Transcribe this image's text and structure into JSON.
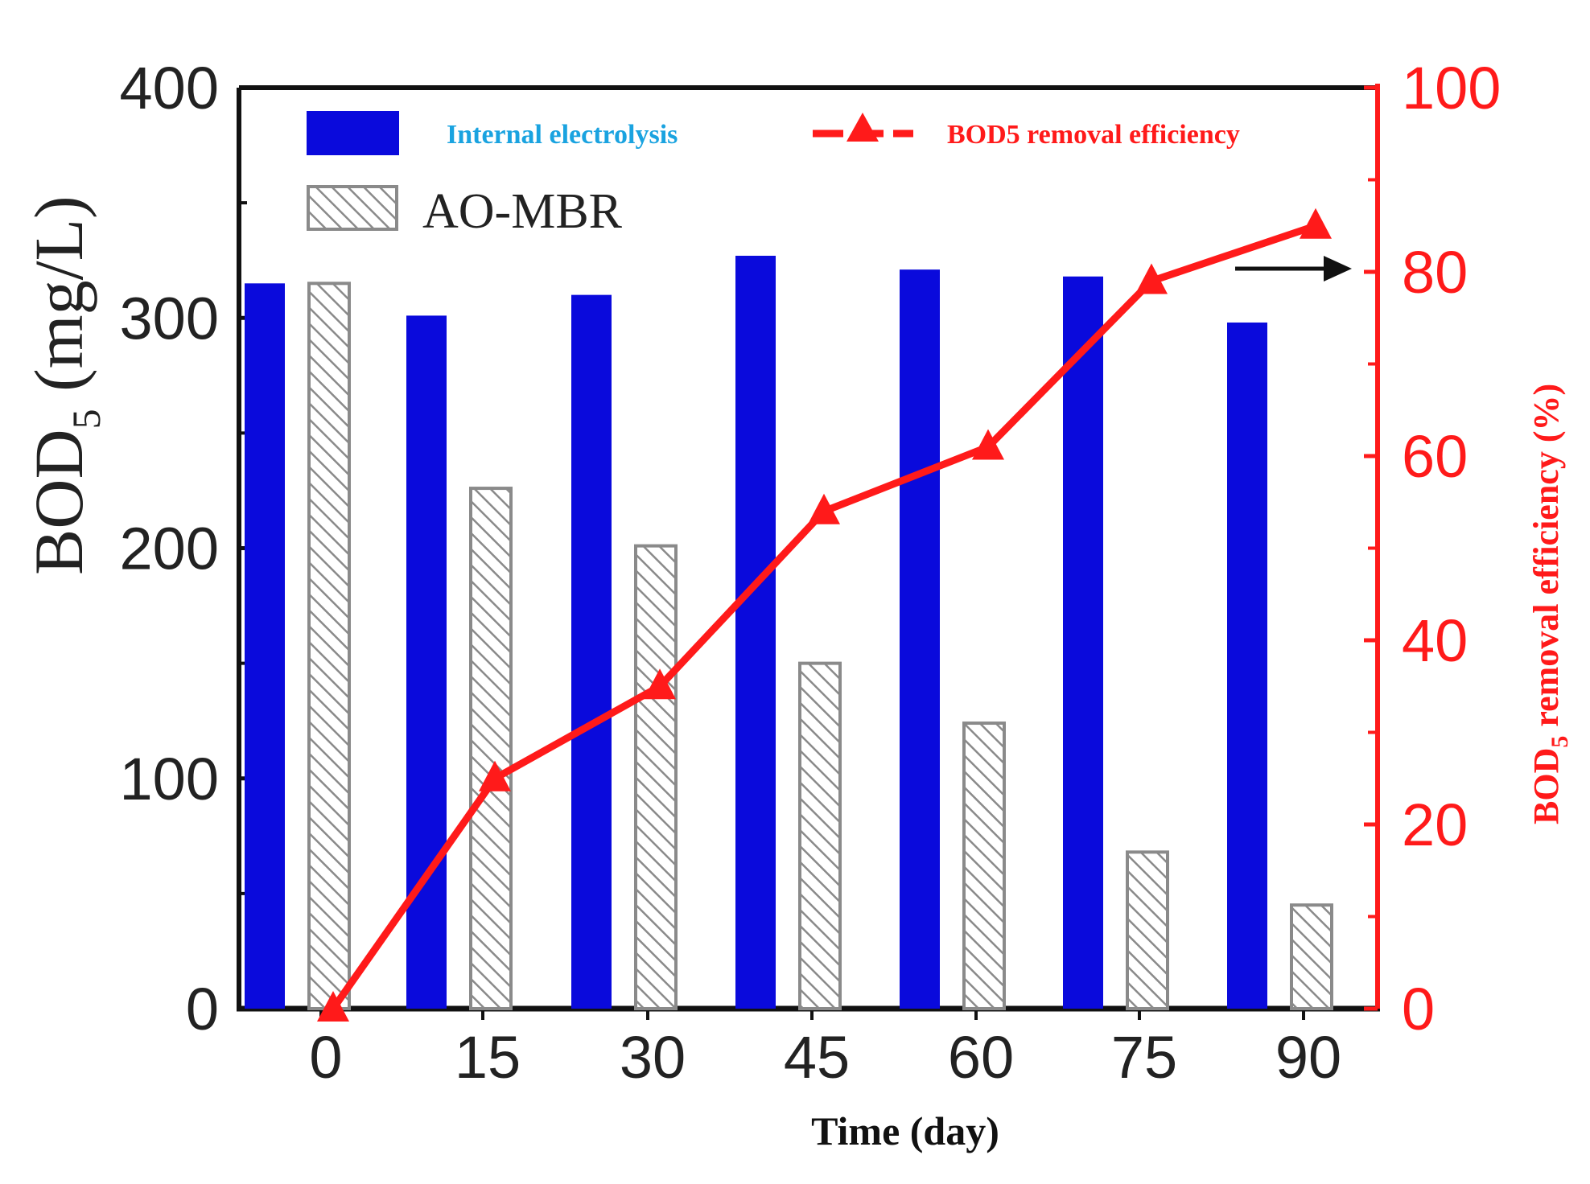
{
  "chart_data": {
    "type": "bar",
    "categories": [
      "0",
      "15",
      "30",
      "45",
      "60",
      "75",
      "90"
    ],
    "series": [
      {
        "name": "Internal electrolysis",
        "kind": "bar",
        "axis": "left",
        "values": [
          315,
          301,
          310,
          327,
          321,
          318,
          298
        ]
      },
      {
        "name": "AO-MBR",
        "kind": "bar-hatched",
        "axis": "left",
        "values": [
          315,
          226,
          201,
          150,
          124,
          68,
          45
        ]
      },
      {
        "name": "BOD5 removal efficiency",
        "kind": "line-triangle",
        "axis": "right",
        "values": [
          0,
          25,
          35,
          54,
          61,
          79,
          85
        ]
      }
    ],
    "xlabel": "Time (day)",
    "ylabel_left_main": "BOD",
    "ylabel_left_sub": "5",
    "ylabel_left_unit": " (mg/L)",
    "ylabel_right_main": "BOD",
    "ylabel_right_sub": "5",
    "ylabel_right_unit": " removal efficiency (%)",
    "ylim_left": [
      0,
      400
    ],
    "ylim_right": [
      0,
      100
    ],
    "yticks_left": [
      "0",
      "100",
      "200",
      "300",
      "400"
    ],
    "yticks_right": [
      "0",
      "20",
      "40",
      "60",
      "80",
      "100"
    ],
    "legend": {
      "internal_label": "Internal electrolysis",
      "aombr_label": "AO-MBR",
      "efficiency_label": "BOD5 removal efficiency",
      "placement": "top"
    },
    "annotation": "arrow pointing to right axis"
  },
  "colors": {
    "blue_bar": "#0a0adc",
    "red_line": "#ff1a1a",
    "legend_blue_text": "#1aa3e0",
    "hatch": "#8a8a8a",
    "axis": "#111111"
  }
}
